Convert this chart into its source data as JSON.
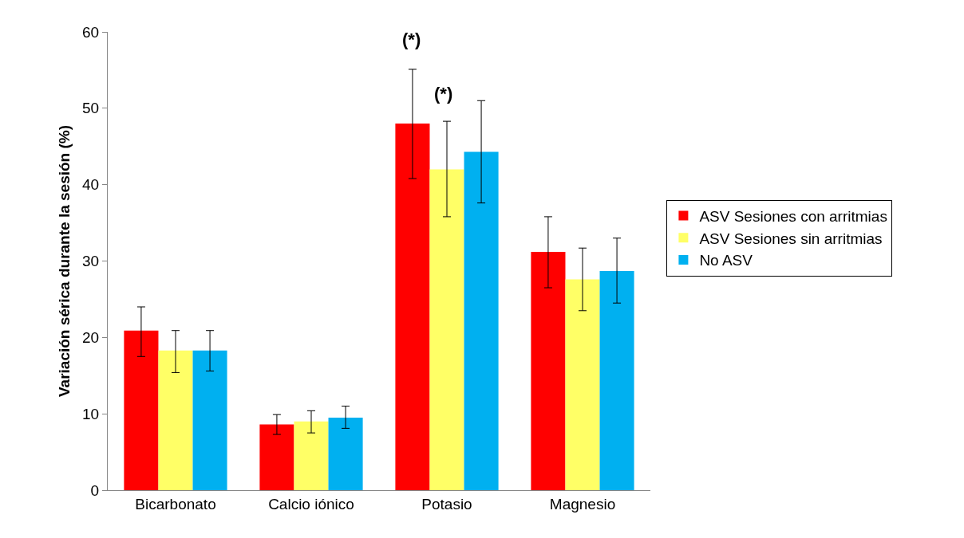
{
  "chart_data": {
    "type": "bar",
    "ylabel": "Variación sérica durante la sesión (%)",
    "categories": [
      "Bicarbonato",
      "Calcio iónico",
      "Potasio",
      "Magnesio"
    ],
    "series": [
      {
        "name": "ASV Sesiones con arritmias",
        "color": "#ff0000",
        "values": [
          20.9,
          8.6,
          48.0,
          31.2
        ],
        "errors": [
          [
            17.5,
            24.0
          ],
          [
            7.3,
            9.9
          ],
          [
            40.8,
            55.1
          ],
          [
            26.5,
            35.8
          ]
        ]
      },
      {
        "name": "ASV Sesiones sin arritmias",
        "color": "#ffff66",
        "values": [
          18.3,
          9.0,
          42.0,
          27.6
        ],
        "errors": [
          [
            15.4,
            20.9
          ],
          [
            7.5,
            10.4
          ],
          [
            35.8,
            48.3
          ],
          [
            23.5,
            31.7
          ]
        ]
      },
      {
        "name": "No ASV",
        "color": "#00b0f0",
        "values": [
          18.3,
          9.5,
          44.3,
          28.7
        ],
        "errors": [
          [
            15.6,
            20.9
          ],
          [
            8.1,
            11.0
          ],
          [
            37.6,
            51.0
          ],
          [
            24.5,
            33.0
          ]
        ]
      }
    ],
    "annotations": [
      "(*)",
      "(*)"
    ],
    "ylim": [
      0,
      60
    ],
    "yticks": [
      0,
      10,
      20,
      30,
      40,
      50,
      60
    ],
    "grid": false,
    "legend": "right"
  }
}
